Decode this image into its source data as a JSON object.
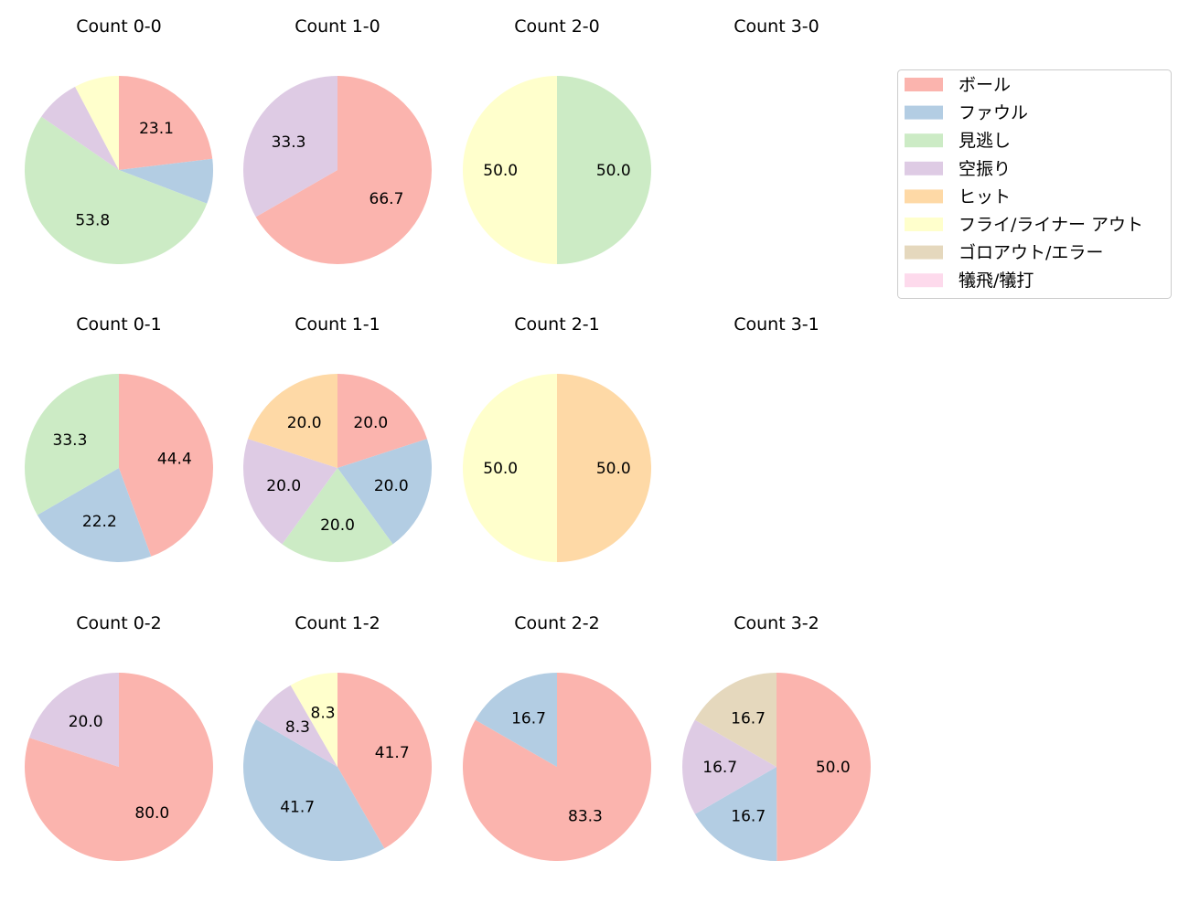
{
  "chart_data": {
    "type": "pie",
    "legend": {
      "placement": "upper-right",
      "entries": [
        "ボール",
        "ファウル",
        "見逃し",
        "空振り",
        "ヒット",
        "フライ/ライナー アウト",
        "ゴロアウト/エラー",
        "犠飛/犠打"
      ]
    },
    "colors": [
      "#fbb4ae",
      "#b3cde3",
      "#ccebc5",
      "#decbe4",
      "#fed9a6",
      "#ffffcc",
      "#e5d8bd",
      "#fddaec"
    ],
    "start_angle": 90,
    "direction": "clockwise",
    "label_format": "%.1f",
    "charts": [
      {
        "title": "Count 0-0",
        "values": [
          23.1,
          7.7,
          53.8,
          7.7,
          0,
          7.7,
          0,
          0
        ],
        "labels": [
          "23.1",
          "",
          "53.8",
          "",
          "",
          "",
          "",
          ""
        ]
      },
      {
        "title": "Count 1-0",
        "values": [
          66.7,
          0,
          0,
          33.3,
          0,
          0,
          0,
          0
        ],
        "labels": [
          "66.7",
          "",
          "",
          "33.3",
          "",
          "",
          "",
          ""
        ]
      },
      {
        "title": "Count 2-0",
        "values": [
          0,
          0,
          50.0,
          0,
          0,
          50.0,
          0,
          0
        ],
        "labels": [
          "",
          "",
          "50.0",
          "",
          "",
          "50.0",
          "",
          ""
        ]
      },
      {
        "title": "Count 3-0",
        "values": [],
        "labels": []
      },
      {
        "title": "Count 0-1",
        "values": [
          44.4,
          22.2,
          33.3,
          0,
          0,
          0,
          0,
          0
        ],
        "labels": [
          "44.4",
          "22.2",
          "33.3",
          "",
          "",
          "",
          "",
          ""
        ]
      },
      {
        "title": "Count 1-1",
        "values": [
          20.0,
          20.0,
          20.0,
          20.0,
          20.0,
          0,
          0,
          0
        ],
        "labels": [
          "20.0",
          "20.0",
          "20.0",
          "20.0",
          "20.0",
          "",
          "",
          ""
        ]
      },
      {
        "title": "Count 2-1",
        "values": [
          0,
          0,
          0,
          0,
          50.0,
          50.0,
          0,
          0
        ],
        "labels": [
          "",
          "",
          "",
          "",
          "50.0",
          "50.0",
          "",
          ""
        ]
      },
      {
        "title": "Count 3-1",
        "values": [],
        "labels": []
      },
      {
        "title": "Count 0-2",
        "values": [
          80.0,
          0,
          0,
          20.0,
          0,
          0,
          0,
          0
        ],
        "labels": [
          "80.0",
          "",
          "",
          "20.0",
          "",
          "",
          "",
          ""
        ]
      },
      {
        "title": "Count 1-2",
        "values": [
          41.7,
          41.7,
          0,
          8.3,
          0,
          8.3,
          0,
          0
        ],
        "labels": [
          "41.7",
          "41.7",
          "",
          "8.3",
          "",
          "8.3",
          "",
          ""
        ]
      },
      {
        "title": "Count 2-2",
        "values": [
          83.3,
          16.7,
          0,
          0,
          0,
          0,
          0,
          0
        ],
        "labels": [
          "83.3",
          "16.7",
          "",
          "",
          "",
          "",
          "",
          ""
        ]
      },
      {
        "title": "Count 3-2",
        "values": [
          50.0,
          16.7,
          0,
          16.7,
          0,
          0,
          16.7,
          0
        ],
        "labels": [
          "50.0",
          "16.7",
          "",
          "16.7",
          "",
          "",
          "16.7",
          ""
        ]
      }
    ]
  }
}
